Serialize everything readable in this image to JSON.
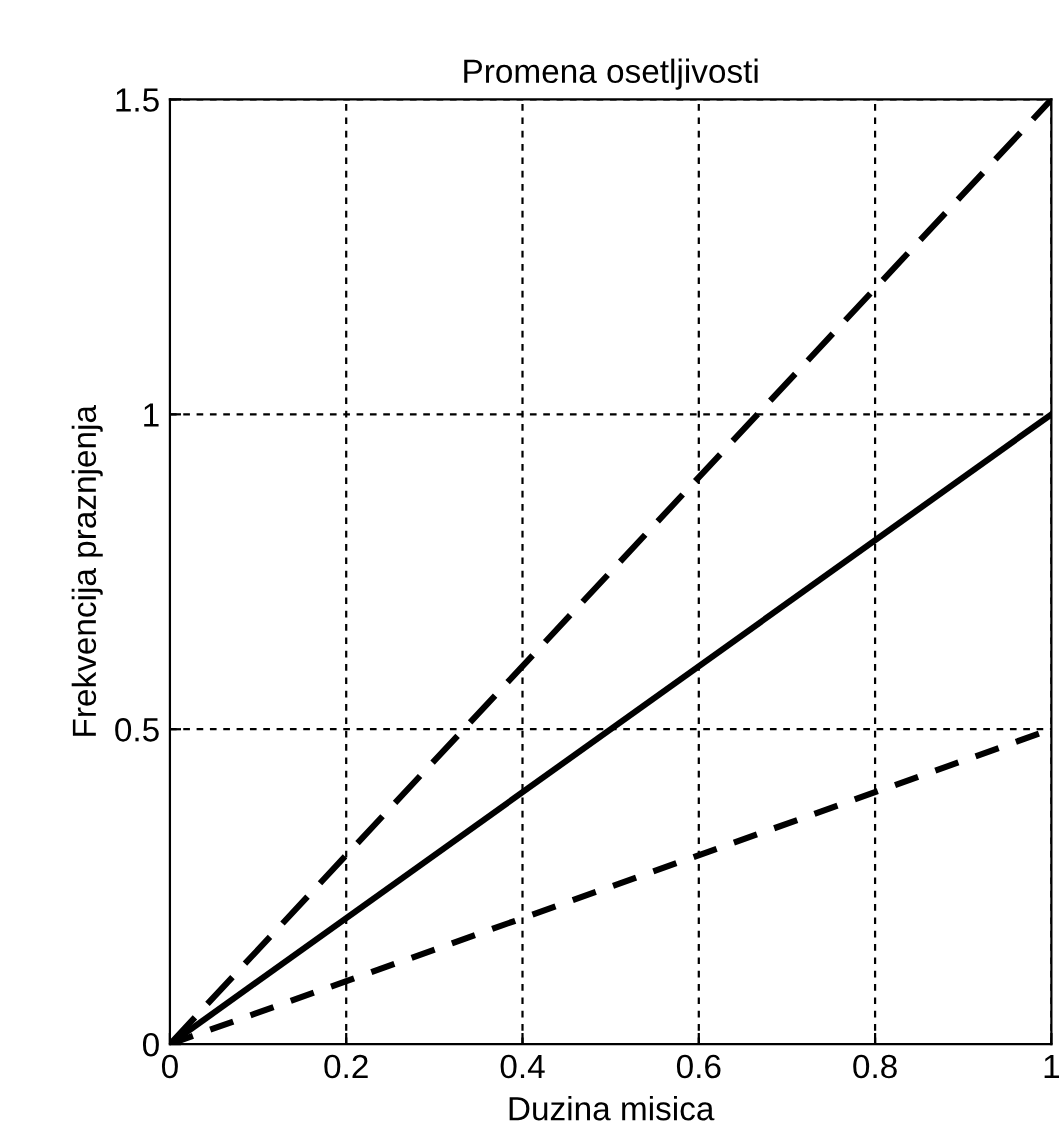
{
  "chart_data": {
    "type": "line",
    "title": "Promena osetljivosti",
    "xlabel": "Duzina misica",
    "ylabel": "Frekvencija praznjenja",
    "x": [
      0,
      1
    ],
    "series": [
      {
        "color": "#000000",
        "values": [
          0,
          1.5
        ],
        "line_style": "dashed"
      },
      {
        "color": "#000000",
        "values": [
          0,
          1
        ],
        "line_style": "solid"
      },
      {
        "color": "#000000",
        "values": [
          0,
          0.5
        ],
        "line_style": "dotted"
      }
    ],
    "xlim": [
      0,
      1
    ],
    "ylim": [
      0,
      1.5
    ],
    "xticks": [
      0,
      0.2,
      0.4,
      0.6,
      0.8,
      1
    ],
    "yticks": [
      0,
      0.5,
      1,
      1.5
    ],
    "grid": true,
    "legend": false,
    "marker": "none"
  }
}
